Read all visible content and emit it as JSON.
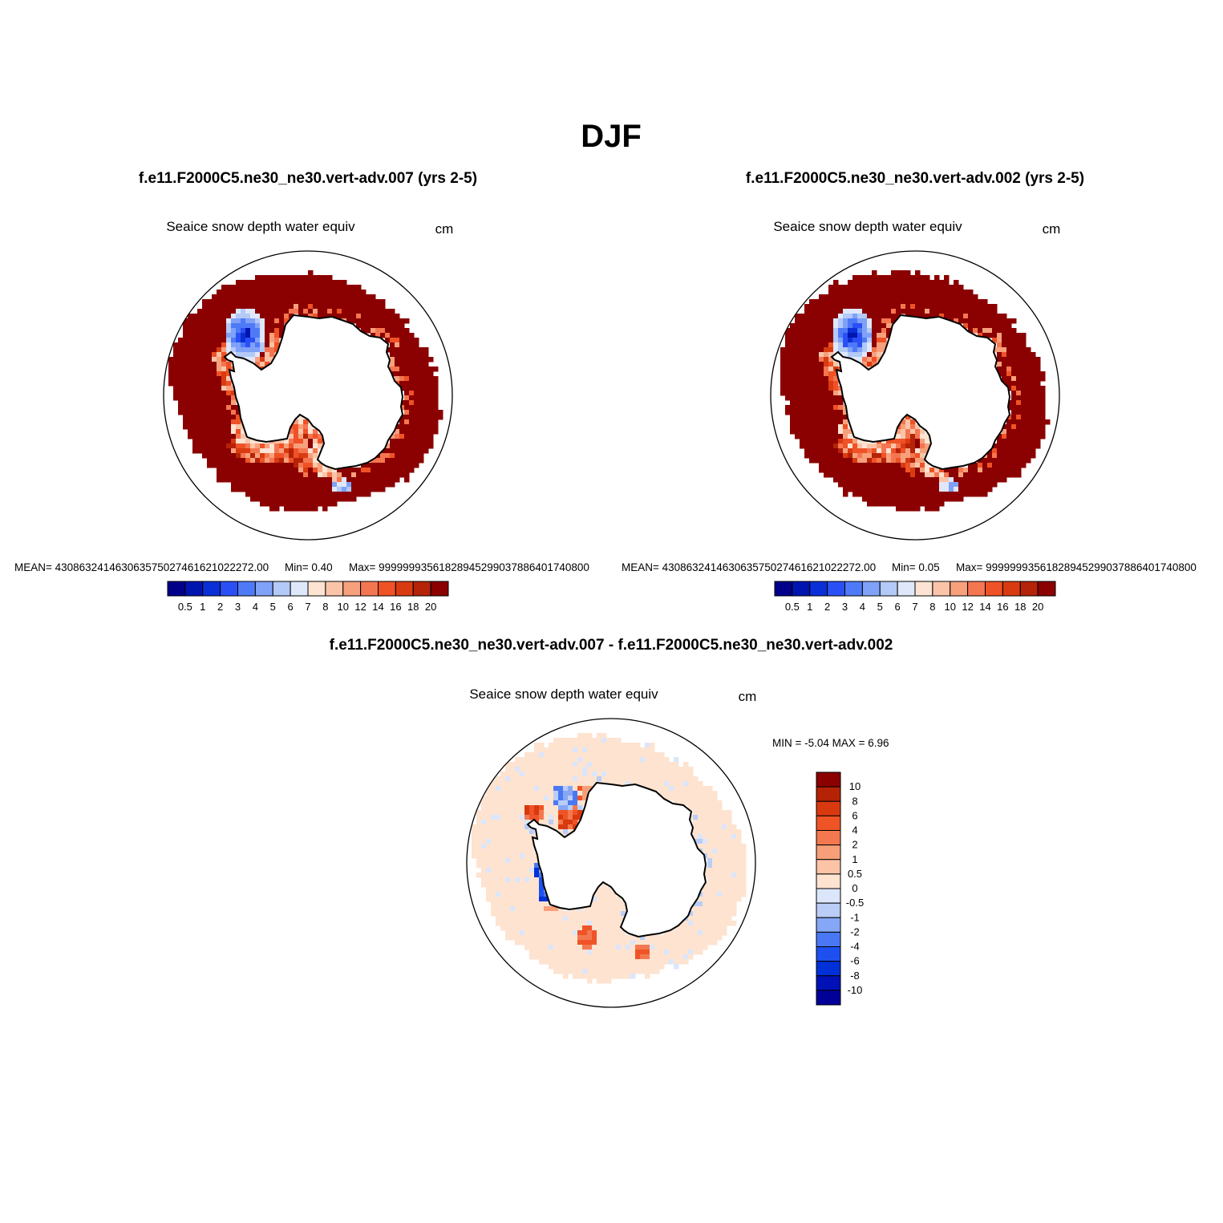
{
  "page": {
    "title": "DJF",
    "variable": "Seaice snow depth water equiv",
    "units": "cm"
  },
  "colors": {
    "abs_palette": [
      "#00008b",
      "#0015b0",
      "#0a2fd6",
      "#2a50f5",
      "#4f7af7",
      "#7fa1f7",
      "#b3c9f7",
      "#dfe8fb",
      "#fde3d2",
      "#fbc4a8",
      "#f7a07c",
      "#f47650",
      "#ef5226",
      "#d93b10",
      "#b52308",
      "#8b0000"
    ],
    "diff_palette": [
      "#000099",
      "#0011b5",
      "#0030d8",
      "#1e50f0",
      "#4a78f5",
      "#86a7f5",
      "#b9cdf7",
      "#dbe6fb",
      "#fde3d0",
      "#fbc4a6",
      "#f79f79",
      "#f3784f",
      "#ef5426",
      "#d9390f",
      "#b42306",
      "#8b0000"
    ],
    "land": "#ffffff",
    "coast": "#000000"
  },
  "chart_data": [
    {
      "type": "heatmap",
      "projection": "south-polar-stereographic",
      "title": "f.e11.F2000C5.ne30_ne30.vert-adv.007 (yrs 2-5)",
      "variable": "Seaice snow depth water equiv",
      "units": "cm",
      "stats": {
        "mean": "MEAN= 430863241463063575027461621022272.00",
        "min": "Min=   0.40",
        "max": "Max= 99999993561828945299037886401740800"
      },
      "colorbar": {
        "orientation": "horizontal",
        "levels": [
          "0.5",
          "1",
          "2",
          "3",
          "4",
          "5",
          "6",
          "7",
          "8",
          "10",
          "12",
          "14",
          "16",
          "18",
          "20"
        ]
      }
    },
    {
      "type": "heatmap",
      "projection": "south-polar-stereographic",
      "title": "f.e11.F2000C5.ne30_ne30.vert-adv.002 (yrs 2-5)",
      "variable": "Seaice snow depth water equiv",
      "units": "cm",
      "stats": {
        "mean": "MEAN= 430863241463063575027461621022272.00",
        "min": "Min=   0.05",
        "max": "Max= 99999993561828945299037886401740800"
      },
      "colorbar": {
        "orientation": "horizontal",
        "levels": [
          "0.5",
          "1",
          "2",
          "3",
          "4",
          "5",
          "6",
          "7",
          "8",
          "10",
          "12",
          "14",
          "16",
          "18",
          "20"
        ]
      }
    },
    {
      "type": "heatmap",
      "projection": "south-polar-stereographic",
      "title": "f.e11.F2000C5.ne30_ne30.vert-adv.007 - f.e11.F2000C5.ne30_ne30.vert-adv.002",
      "variable": "Seaice snow depth water equiv",
      "units": "cm",
      "stats": {
        "minmax": "MIN =  -5.04 MAX =   6.96"
      },
      "colorbar": {
        "orientation": "vertical",
        "levels": [
          "10",
          "8",
          "6",
          "4",
          "2",
          "1",
          "0.5",
          "0",
          "-0.5",
          "-1",
          "-2",
          "-4",
          "-6",
          "-8",
          "-10"
        ]
      }
    }
  ]
}
